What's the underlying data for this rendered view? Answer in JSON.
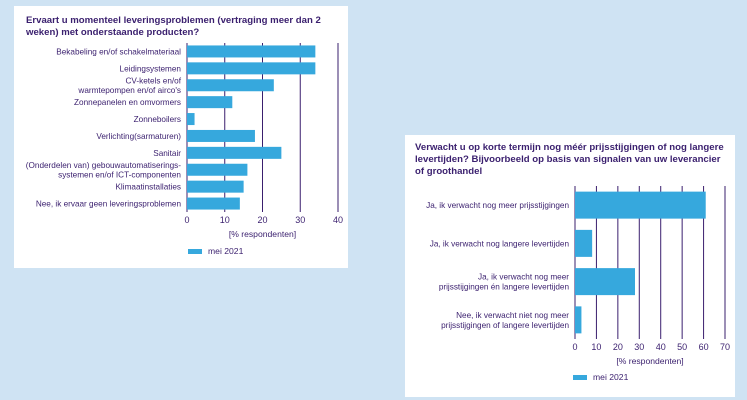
{
  "colors": {
    "bar": "#36a8dd",
    "grid": "#3a1f6e",
    "text": "#3a1f6e",
    "page": "#cfe3f3"
  },
  "chart_data": [
    {
      "type": "bar",
      "orientation": "horizontal",
      "title": "Ervaart u momenteel leveringsproblemen (vertraging meer dan 2 weken) met onderstaande producten?",
      "categories": [
        "Bekabeling en/of schakelmateriaal",
        "Leidingsystemen",
        "CV-ketels en/of warmtepompen en/of airco's",
        "Zonnepanelen en omvormers",
        "Zonneboilers",
        "Verlichting(sarmaturen)",
        "Sanitair",
        "(Onderdelen van) gebouwautomatiserings-systemen en/of ICT-componenten",
        "Klimaatinstallaties",
        "Nee, ik ervaar geen leveringsproblemen"
      ],
      "category_lines": [
        [
          "Bekabeling en/of schakelmateriaal"
        ],
        [
          "Leidingsystemen"
        ],
        [
          "CV-ketels en/of",
          "warmtepompen en/of airco's"
        ],
        [
          "Zonnepanelen en omvormers"
        ],
        [
          "Zonneboilers"
        ],
        [
          "Verlichting(sarmaturen)"
        ],
        [
          "Sanitair"
        ],
        [
          "(Onderdelen van) gebouwautomatiserings-",
          "systemen en/of ICT-componenten"
        ],
        [
          "Klimaatinstallaties"
        ],
        [
          "Nee, ik ervaar geen leveringsproblemen"
        ]
      ],
      "series": [
        {
          "name": "mei 2021",
          "values": [
            34,
            34,
            23,
            12,
            2,
            18,
            25,
            16,
            15,
            14
          ]
        }
      ],
      "xlim": [
        0,
        40
      ],
      "xticks": [
        "0",
        "10",
        "20",
        "30",
        "40"
      ],
      "xlabel": "[% respondenten]",
      "legend": "mei 2021",
      "grid": true
    },
    {
      "type": "bar",
      "orientation": "horizontal",
      "title": "Verwacht u op korte termijn nog méér prijsstijgingen of nog langere levertijden? Bijvoorbeeld op basis van signalen van uw leverancier of groothandel",
      "categories": [
        "Ja, ik verwacht nog meer prijsstijgingen",
        "Ja, ik verwacht nog langere levertijden",
        "Ja, ik verwacht nog meer prijsstijgingen én langere levertijden",
        "Nee, ik verwacht niet nog meer prijsstijgingen of langere levertijden"
      ],
      "category_lines": [
        [
          "Ja, ik verwacht nog meer prijsstijgingen"
        ],
        [
          "Ja, ik verwacht nog langere levertijden"
        ],
        [
          "Ja, ik verwacht nog meer",
          "prijsstijgingen én langere levertijden"
        ],
        [
          "Nee, ik verwacht niet nog meer",
          "prijsstijgingen of langere levertijden"
        ]
      ],
      "series": [
        {
          "name": "mei 2021",
          "values": [
            61,
            8,
            28,
            3
          ]
        }
      ],
      "xlim": [
        0,
        70
      ],
      "xticks": [
        "0",
        "10",
        "20",
        "30",
        "40",
        "50",
        "60",
        "70"
      ],
      "xlabel": "[% respondenten]",
      "legend": "mei 2021",
      "grid": true
    }
  ]
}
